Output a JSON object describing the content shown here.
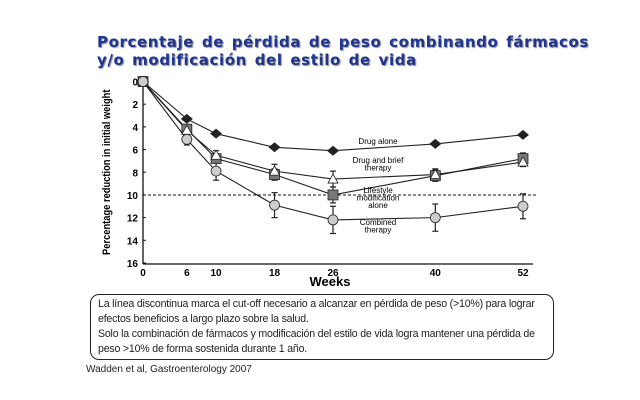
{
  "slide": {
    "title_line1": "Porcentaje  de pérdida de peso combinando  fármacos",
    "title_line2": "y/o  modificación  del estilo  de vida",
    "note_line1": "La línea discontinua marca el cut-off necesario a alcanzar en pérdida de peso (>10%) para lograr efectos beneficios a largo plazo sobre la salud.",
    "note_line2": "Solo la combinación de fármacos y modificación del estilo de vida logra mantener una pérdida de peso >10% de forma sostenida durante 1 año.",
    "citation": "Wadden et al, Gastroenterology 2007"
  },
  "chart_data": {
    "type": "line",
    "title": "",
    "xlabel": "Weeks",
    "ylabel": "Percentage reduction in initial weight",
    "x": [
      0,
      6,
      10,
      18,
      26,
      40,
      52
    ],
    "xticks": [
      "0",
      "6",
      "10",
      "18",
      "26",
      "40",
      "52"
    ],
    "yticks": [
      "0",
      "2",
      "4",
      "6",
      "8",
      "10",
      "12",
      "14",
      "16"
    ],
    "xlim": [
      0,
      52
    ],
    "ylim": [
      0,
      16
    ],
    "y_inverted": true,
    "reference_line": {
      "y": 10,
      "style": "dashed"
    },
    "series": [
      {
        "name": "Drug alone",
        "label_lines": [
          "Drug alone"
        ],
        "marker": "diamond",
        "color": "#333333",
        "values": [
          0,
          3.3,
          4.6,
          5.8,
          6.1,
          5.5,
          4.7
        ],
        "errors": [
          0,
          0,
          0,
          0,
          0,
          0,
          0
        ]
      },
      {
        "name": "Drug and brief therapy",
        "label_lines": [
          "Drug and brief",
          "therapy"
        ],
        "marker": "square",
        "color": "#777777",
        "values": [
          0,
          4.2,
          6.8,
          8.2,
          10.0,
          8.3,
          6.8
        ],
        "errors": [
          0,
          0,
          0.4,
          0.5,
          0.7,
          0.5,
          0.5
        ]
      },
      {
        "name": "Lifestyle modification alone",
        "label_lines": [
          "Lifestyle",
          "modification",
          "alone"
        ],
        "marker": "triangle",
        "color": "#ffffff",
        "values": [
          0,
          4.3,
          6.5,
          7.9,
          8.6,
          8.2,
          7.1
        ],
        "errors": [
          0,
          0,
          0.4,
          0.6,
          0.7,
          0.5,
          0.4
        ]
      },
      {
        "name": "Combined therapy",
        "label_lines": [
          "Combined",
          "therapy"
        ],
        "marker": "circle",
        "color": "#cccccc",
        "values": [
          0,
          5.1,
          7.9,
          10.9,
          12.2,
          12.0,
          11.0
        ],
        "errors": [
          0,
          0.5,
          0.8,
          1.1,
          1.2,
          1.2,
          1.1
        ]
      }
    ]
  }
}
